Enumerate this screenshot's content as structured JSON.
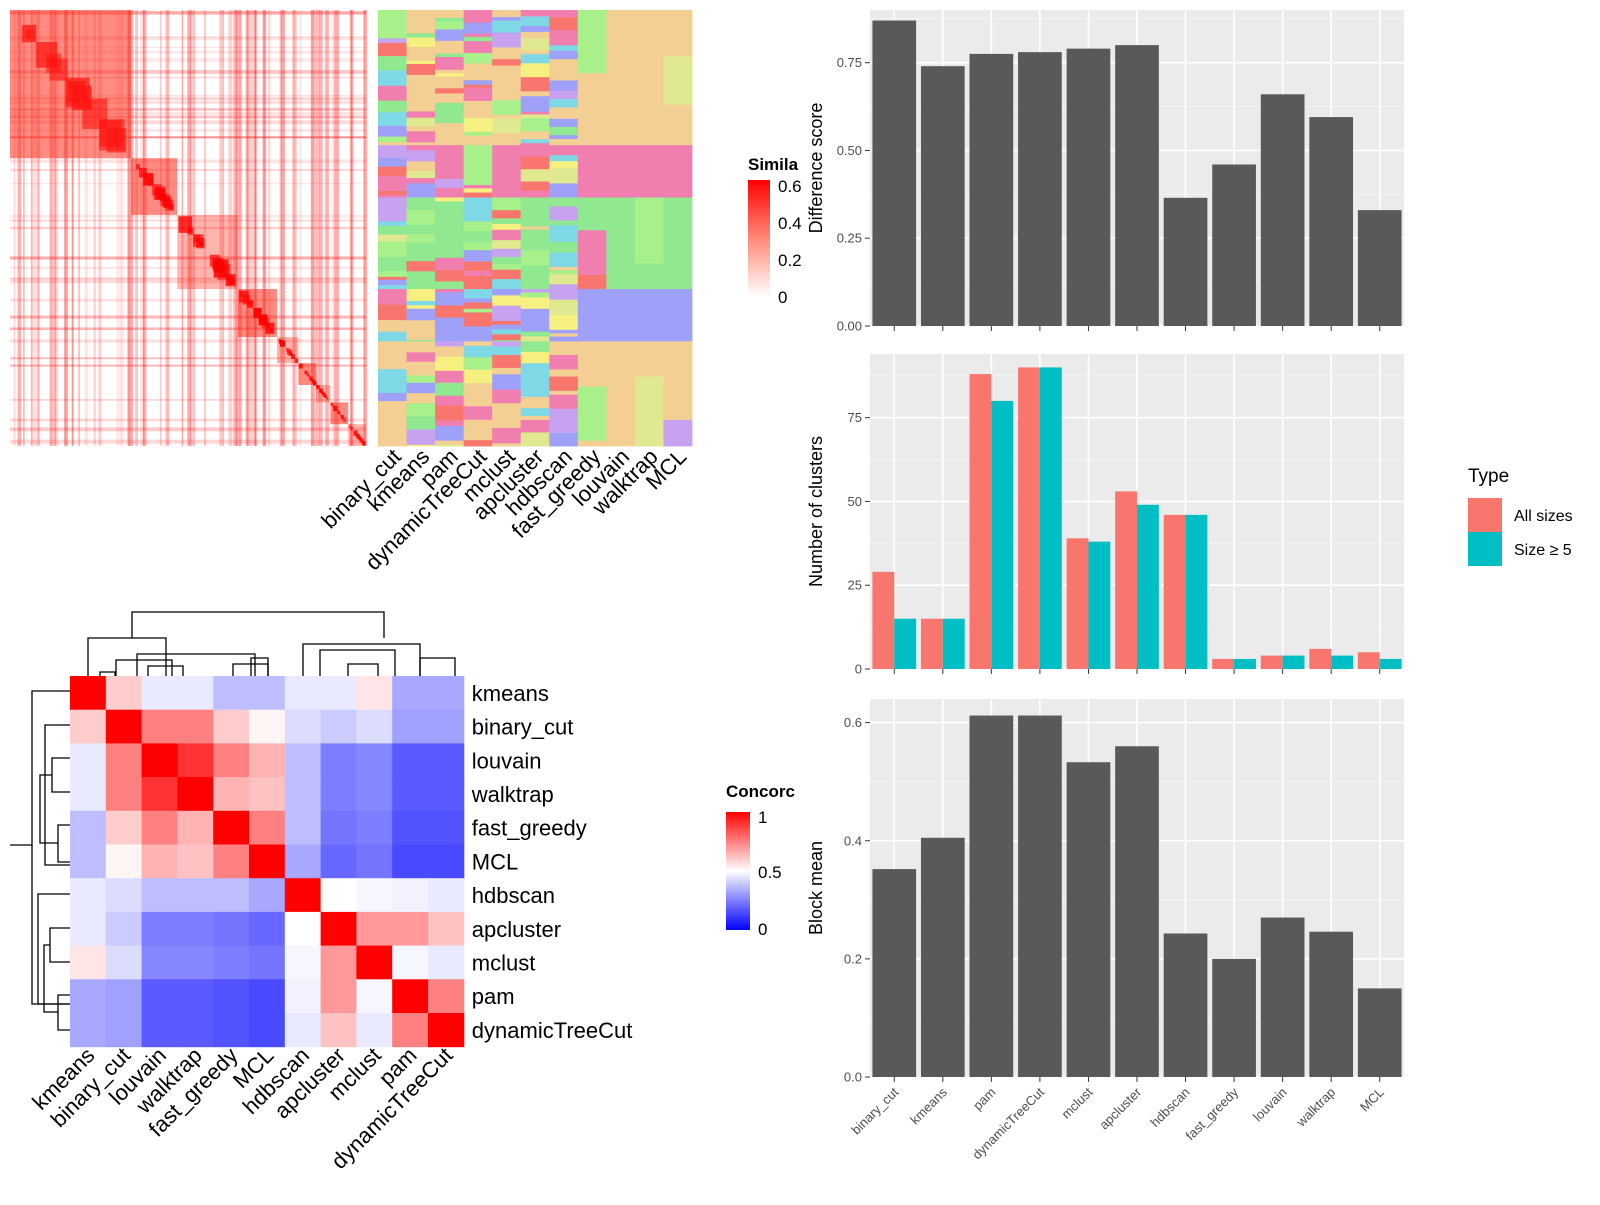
{
  "colors": {
    "bar_fill": "#595959",
    "panel_bg": "#ebebeb",
    "grid": "#ffffff",
    "all_sizes": "#f8766d",
    "size_ge5": "#00bfc4",
    "heat_low": "#0000ff",
    "heat_mid": "#ffffff",
    "heat_high": "#ff0000"
  },
  "similarity_legend": {
    "title": "Simila",
    "ticks": [
      "0.6",
      "0.4",
      "0.2",
      "0"
    ]
  },
  "concordance_legend": {
    "title": "Concorc",
    "ticks": [
      "1",
      "0.5",
      "0"
    ]
  },
  "method_strip_labels": [
    "binary_cut",
    "kmeans",
    "pam",
    "dynamicTreeCut",
    "mclust",
    "apcluster",
    "hdbscan",
    "fast_greedy",
    "louvain",
    "walktrap",
    "MCL"
  ],
  "chart_data": [
    {
      "type": "bar",
      "panel": "difference",
      "categories": [
        "binary_cut",
        "kmeans",
        "pam",
        "dynamicTreeCut",
        "mclust",
        "apcluster",
        "hdbscan",
        "fast_greedy",
        "louvain",
        "walktrap",
        "MCL"
      ],
      "values": [
        0.87,
        0.74,
        0.775,
        0.78,
        0.79,
        0.8,
        0.365,
        0.46,
        0.66,
        0.595,
        0.33
      ],
      "ylabel": "Difference score",
      "ylim": [
        0,
        0.9
      ],
      "yticks": [
        0,
        0.25,
        0.5,
        0.75
      ],
      "ytick_labels": [
        "0.00",
        "0.25",
        "0.50",
        "0.75"
      ],
      "grid": true
    },
    {
      "type": "bar",
      "panel": "clusters",
      "categories": [
        "binary_cut",
        "kmeans",
        "pam",
        "dynamicTreeCut",
        "mclust",
        "apcluster",
        "hdbscan",
        "fast_greedy",
        "louvain",
        "walktrap",
        "MCL"
      ],
      "series": [
        {
          "name": "All sizes",
          "values": [
            29,
            15,
            88,
            90,
            39,
            53,
            46,
            3,
            4,
            6,
            5
          ]
        },
        {
          "name": "Size ≥ 5",
          "values": [
            15,
            15,
            80,
            90,
            38,
            49,
            46,
            3,
            4,
            4,
            3
          ]
        }
      ],
      "ylabel": "Number of clusters",
      "ylim": [
        0,
        94
      ],
      "yticks": [
        0,
        25,
        50,
        75
      ],
      "ytick_labels": [
        "0",
        "25",
        "50",
        "75"
      ],
      "legend": {
        "title": "Type",
        "position": "right"
      },
      "grid": true
    },
    {
      "type": "bar",
      "panel": "blockmean",
      "categories": [
        "binary_cut",
        "kmeans",
        "pam",
        "dynamicTreeCut",
        "mclust",
        "apcluster",
        "hdbscan",
        "fast_greedy",
        "louvain",
        "walktrap",
        "MCL"
      ],
      "values": [
        0.352,
        0.405,
        0.612,
        0.612,
        0.533,
        0.56,
        0.243,
        0.2,
        0.27,
        0.246,
        0.15
      ],
      "ylabel": "Block mean",
      "ylim": [
        0,
        0.64
      ],
      "yticks": [
        0,
        0.2,
        0.4,
        0.6
      ],
      "ytick_labels": [
        "0.0",
        "0.2",
        "0.4",
        "0.6"
      ],
      "grid": true
    },
    {
      "type": "heatmap",
      "panel": "concordance",
      "rows": [
        "kmeans",
        "binary_cut",
        "louvain",
        "walktrap",
        "fast_greedy",
        "MCL",
        "hdbscan",
        "apcluster",
        "mclust",
        "pam",
        "dynamicTreeCut"
      ],
      "cols": [
        "kmeans",
        "binary_cut",
        "louvain",
        "walktrap",
        "fast_greedy",
        "MCL",
        "hdbscan",
        "apcluster",
        "mclust",
        "pam",
        "dynamicTreeCut"
      ],
      "values": [
        [
          1.0,
          0.6,
          0.45,
          0.45,
          0.35,
          0.35,
          0.45,
          0.45,
          0.55,
          0.3,
          0.3
        ],
        [
          0.6,
          1.0,
          0.75,
          0.75,
          0.6,
          0.52,
          0.42,
          0.38,
          0.42,
          0.28,
          0.28
        ],
        [
          0.45,
          0.75,
          1.0,
          0.9,
          0.75,
          0.65,
          0.35,
          0.2,
          0.22,
          0.12,
          0.12
        ],
        [
          0.45,
          0.75,
          0.9,
          1.0,
          0.65,
          0.62,
          0.35,
          0.2,
          0.22,
          0.12,
          0.12
        ],
        [
          0.35,
          0.6,
          0.75,
          0.65,
          1.0,
          0.75,
          0.35,
          0.18,
          0.2,
          0.1,
          0.1
        ],
        [
          0.35,
          0.52,
          0.65,
          0.62,
          0.75,
          1.0,
          0.3,
          0.15,
          0.18,
          0.08,
          0.08
        ],
        [
          0.45,
          0.42,
          0.35,
          0.35,
          0.35,
          0.3,
          1.0,
          0.5,
          0.48,
          0.47,
          0.45
        ],
        [
          0.45,
          0.38,
          0.2,
          0.2,
          0.18,
          0.15,
          0.5,
          1.0,
          0.7,
          0.7,
          0.62
        ],
        [
          0.55,
          0.42,
          0.22,
          0.22,
          0.2,
          0.18,
          0.48,
          0.7,
          1.0,
          0.48,
          0.45
        ],
        [
          0.3,
          0.28,
          0.12,
          0.12,
          0.1,
          0.08,
          0.47,
          0.7,
          0.48,
          1.0,
          0.75
        ],
        [
          0.3,
          0.28,
          0.12,
          0.12,
          0.1,
          0.08,
          0.45,
          0.62,
          0.45,
          0.75,
          1.0
        ]
      ]
    }
  ]
}
